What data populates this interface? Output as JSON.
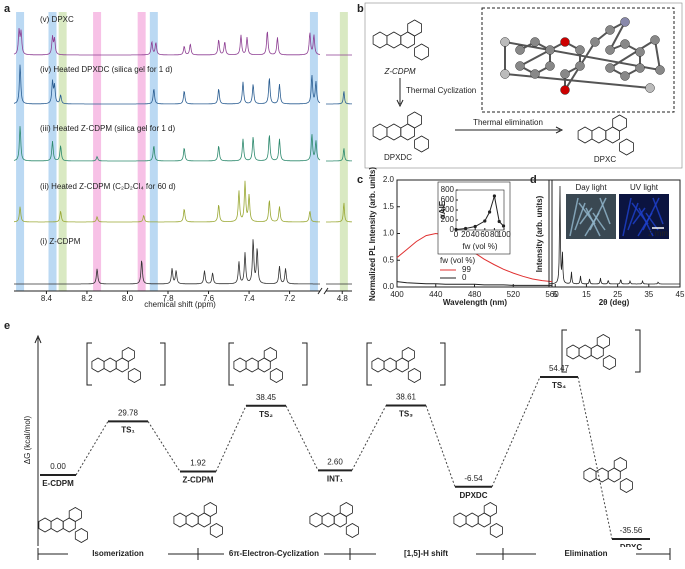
{
  "panel_labels": [
    "a",
    "b",
    "c",
    "d",
    "e"
  ],
  "a": {
    "xlabel": "chemical shift (ppm)",
    "xlim": [
      8.56,
      7.05
    ],
    "xlim_break": [
      4.9,
      4.74
    ],
    "xticks": [
      8.4,
      8.2,
      {
        "value": 8,
        "label": "8.0"
      },
      7.8,
      7.6,
      7.4,
      7.2,
      4.8
    ],
    "highlights": [
      {
        "ppm": 8.53,
        "color": "#9ec9ee"
      },
      {
        "ppm": 8.37,
        "color": "#9ec9ee"
      },
      {
        "ppm": 8.32,
        "color": "#c9dfa8"
      },
      {
        "ppm": 8.15,
        "color": "#f4a6dc"
      },
      {
        "ppm": 7.93,
        "color": "#f4a6dc"
      },
      {
        "ppm": 7.87,
        "color": "#9ec9ee"
      },
      {
        "ppm": 7.08,
        "color": "#9ec9ee"
      },
      {
        "ppm": 4.79,
        "color": "#c9dfa8"
      }
    ],
    "spectra": [
      {
        "label": "(v)   DPXC",
        "color": "#8e3f93",
        "ppm": [
          8.535,
          8.525,
          8.37,
          8.36,
          7.88,
          7.86,
          7.72,
          7.69,
          7.55,
          7.52,
          7.44,
          7.41,
          7.31,
          7.26,
          7.1,
          7.08
        ],
        "heights": [
          0.55,
          0.5,
          0.4,
          0.35,
          0.3,
          0.28,
          0.2,
          0.25,
          0.35,
          0.3,
          0.45,
          0.4,
          0.55,
          0.4,
          0.5,
          0.45
        ]
      },
      {
        "label": "(iv)  Heated DPXDC (silica gel for 1 d)",
        "color": "#2b5e92",
        "ppm": [
          8.53,
          8.37,
          8.36,
          8.33,
          7.87,
          7.72,
          7.55,
          7.43,
          7.38,
          7.3,
          7.25,
          7.09,
          7.07,
          4.79
        ],
        "heights": [
          0.9,
          0.5,
          0.4,
          0.2,
          0.35,
          0.3,
          0.35,
          0.5,
          0.45,
          0.6,
          0.45,
          0.65,
          0.5,
          0.3
        ]
      },
      {
        "label": "(iii)  Heated Z-CDPM (silica gel for 1 d)",
        "color": "#2e8a6e",
        "ppm": [
          8.53,
          8.37,
          8.33,
          8.15,
          7.87,
          7.72,
          7.55,
          7.43,
          7.38,
          7.3,
          7.25,
          7.09,
          7.07,
          4.79
        ],
        "heights": [
          0.8,
          0.45,
          0.35,
          0.1,
          0.35,
          0.3,
          0.35,
          0.5,
          0.55,
          0.6,
          0.5,
          0.6,
          0.45,
          0.3
        ]
      },
      {
        "label": "(ii)  Heated Z-CDPM (C₂D₂Cl₄ for 60 d)",
        "color": "#9aa834",
        "ppm": [
          8.53,
          8.33,
          8.15,
          7.92,
          7.72,
          7.55,
          7.45,
          7.42,
          7.4,
          7.3,
          7.25,
          7.1,
          4.79
        ],
        "heights": [
          0.35,
          0.25,
          0.12,
          0.15,
          0.3,
          0.4,
          0.7,
          0.9,
          0.6,
          0.5,
          0.35,
          0.25,
          0.45
        ]
      },
      {
        "label": "(i)   Z-CDPM",
        "color": "#333333",
        "ppm": [
          8.15,
          7.93,
          7.78,
          7.76,
          7.62,
          7.58,
          7.45,
          7.42,
          7.38,
          7.36,
          7.25,
          7.22
        ],
        "heights": [
          0.35,
          0.55,
          0.35,
          0.3,
          0.3,
          0.25,
          0.5,
          0.7,
          1.0,
          0.8,
          0.4,
          0.35
        ]
      }
    ]
  },
  "b": {
    "top": "Z-CDPM",
    "step1": "Thermal Cyclization",
    "middle": "DPXDC",
    "step2": "Thermal elimination",
    "product": "DPXC"
  },
  "c": {
    "chart_data": {
      "type": "line",
      "xlabel": "Wavelength (nm)",
      "ylabel": "Normalized PL Intensity (arb. units)",
      "x": [
        400,
        410,
        420,
        430,
        440,
        450,
        460,
        470,
        480,
        490,
        500,
        510,
        520,
        530,
        540,
        550,
        560
      ],
      "xlim": [
        400,
        560
      ],
      "xticks": [
        400,
        440,
        480,
        520,
        560
      ],
      "ylim": [
        0,
        2
      ],
      "yticks": [
        {
          "value": 0,
          "label": "0.0"
        },
        0.5,
        {
          "value": 1,
          "label": "1.0"
        },
        1.5,
        {
          "value": 2,
          "label": "2.0"
        }
      ],
      "legend_title": "fw (vol %)",
      "series": [
        {
          "name": "99",
          "color": "#e03030",
          "values": [
            0.55,
            0.7,
            0.85,
            0.96,
            1.0,
            0.97,
            0.88,
            0.77,
            0.64,
            0.52,
            0.42,
            0.33,
            0.26,
            0.2,
            0.15,
            0.12,
            0.1
          ]
        },
        {
          "name": "0",
          "color": "#222222",
          "values": [
            0.1,
            0.08,
            0.07,
            0.06,
            0.06,
            0.05,
            0.05,
            0.05,
            0.05,
            0.04,
            0.04,
            0.04,
            0.03,
            0.03,
            0.03,
            0.03,
            0.03
          ]
        }
      ],
      "inset": {
        "type": "line",
        "xlabel": "fw (vol %)",
        "ylabel": "αAIE",
        "x": [
          0,
          20,
          40,
          60,
          70,
          80,
          90,
          99
        ],
        "values": [
          10,
          30,
          70,
          180,
          360,
          680,
          170,
          80
        ],
        "xlim": [
          0,
          100
        ],
        "xticks": [
          0,
          20,
          40,
          60,
          80,
          100
        ],
        "ylim": [
          0,
          800
        ],
        "yticks": [
          0,
          200,
          400,
          600,
          800
        ],
        "color": "#222222"
      }
    }
  },
  "d": {
    "chart_data": {
      "type": "line",
      "xlabel": "2θ (deg)",
      "ylabel": "Intensity (arb. units)",
      "xlim": [
        3,
        45
      ],
      "xticks": [
        5,
        15,
        25,
        35,
        45
      ],
      "x": [
        6.5,
        7.3,
        10.2,
        13.1,
        16,
        19.5,
        22,
        26,
        29,
        33,
        38
      ],
      "values": [
        1.0,
        0.3,
        0.12,
        0.08,
        0.05,
        0.06,
        0.04,
        0.05,
        0.03,
        0.03,
        0.02
      ],
      "color": "#222222"
    },
    "photos": [
      "Day light",
      "UV light"
    ],
    "scale_bar": "2 mm"
  },
  "e": {
    "ylabel": "ΔG (kcal/mol)",
    "states": [
      "E-CDPM",
      "TS₁",
      "Z-CDPM",
      "TS₂",
      "INT₁",
      "TS₃",
      "DPXDC",
      "TS₄",
      "DPXC"
    ],
    "values": [
      0,
      29.78,
      1.92,
      38.45,
      2.6,
      38.61,
      -6.54,
      54.47,
      -35.56
    ],
    "value_labels": [
      "0.00",
      "29.78",
      "1.92",
      "38.45",
      "2.60",
      "38.61",
      "-6.54",
      "54.47",
      "-35.56"
    ],
    "stages": [
      "Isomerization",
      "6π-Electron-Cyclization",
      "[1,5]-H shift",
      "Elimination"
    ]
  }
}
